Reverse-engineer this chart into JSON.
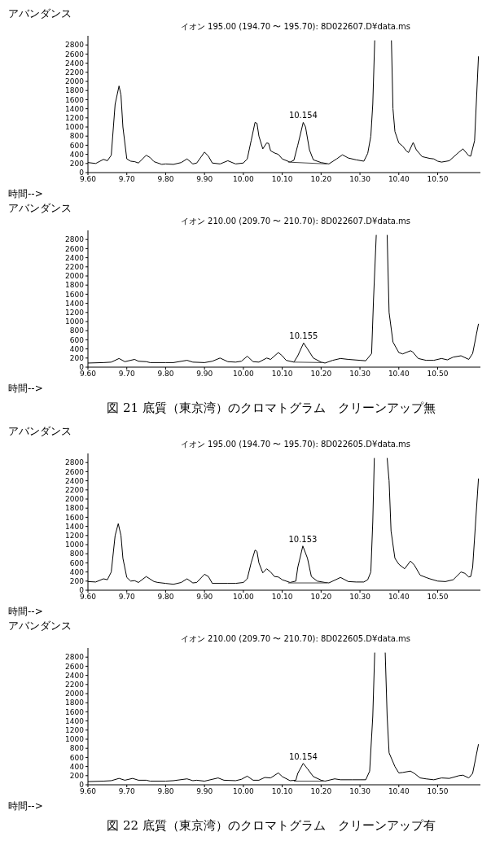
{
  "chart_data": [
    {
      "type": "line",
      "title": "イオン 195.00 (194.70 〜 195.70): 8D022607.D¥data.ms",
      "xlabel": "時間-->",
      "ylabel": "アバンダンス",
      "xlim": [
        9.6,
        10.61
      ],
      "ylim": [
        0,
        3000
      ],
      "xticks": [
        {
          "value": 9.6,
          "label": "9.60"
        },
        {
          "value": 9.7,
          "label": "9.70"
        },
        {
          "value": 9.8,
          "label": "9.80"
        },
        {
          "value": 9.9,
          "label": "9.90"
        },
        {
          "value": 10.0,
          "label": "10.00"
        },
        {
          "value": 10.1,
          "label": "10.10"
        },
        {
          "value": 10.2,
          "label": "10.20"
        },
        {
          "value": 10.3,
          "label": "10.30"
        },
        {
          "value": 10.4,
          "label": "10.40"
        },
        {
          "value": 10.5,
          "label": "10.50"
        }
      ],
      "yticks": [
        0,
        200,
        400,
        600,
        800,
        1000,
        1200,
        1400,
        1600,
        1800,
        2000,
        2200,
        2400,
        2600,
        2800
      ],
      "series": [
        {
          "color": "#000000",
          "x": [
            9.6,
            9.62,
            9.64,
            9.65,
            9.66,
            9.67,
            9.68,
            9.685,
            9.69,
            9.7,
            9.71,
            9.72,
            9.73,
            9.75,
            9.76,
            9.77,
            9.79,
            9.8,
            9.82,
            9.84,
            9.855,
            9.87,
            9.88,
            9.9,
            9.91,
            9.92,
            9.94,
            9.96,
            9.98,
            10.0,
            10.01,
            10.02,
            10.03,
            10.035,
            10.04,
            10.05,
            10.06,
            10.065,
            10.07,
            10.08,
            10.09,
            10.1,
            10.12,
            10.13,
            10.14,
            10.154,
            10.16,
            10.17,
            10.18,
            10.2,
            10.22,
            10.24,
            10.255,
            10.27,
            10.29,
            10.31,
            10.32,
            10.328,
            10.333,
            10.338,
            10.36,
            10.381,
            10.385,
            10.39,
            10.4,
            10.41,
            10.42,
            10.425,
            10.437,
            10.445,
            10.46,
            10.48,
            10.49,
            10.5,
            10.51,
            10.53,
            10.555,
            10.565,
            10.58,
            10.585,
            10.595,
            10.605
          ],
          "values": [
            220,
            200,
            290,
            260,
            380,
            1500,
            1900,
            1700,
            1000,
            300,
            250,
            240,
            210,
            380,
            330,
            240,
            180,
            190,
            180,
            220,
            300,
            190,
            210,
            450,
            360,
            210,
            190,
            260,
            190,
            210,
            300,
            700,
            1100,
            1080,
            800,
            520,
            650,
            640,
            480,
            430,
            400,
            300,
            230,
            270,
            600,
            1100,
            1000,
            500,
            280,
            220,
            190,
            300,
            390,
            320,
            280,
            250,
            420,
            800,
            1500,
            2900,
            null,
            2900,
            1400,
            900,
            650,
            580,
            470,
            440,
            660,
            500,
            350,
            310,
            300,
            250,
            230,
            260,
            450,
            520,
            370,
            360,
            700,
            2550
          ]
        },
        {
          "type": "line",
          "color": "#444444",
          "x": [
            10.115,
            10.215
          ],
          "values": [
            230,
            190
          ]
        }
      ],
      "annotations": [
        {
          "text": "10.154",
          "x": 10.154,
          "y": 1100
        }
      ]
    },
    {
      "type": "line",
      "title": "イオン 210.00 (209.70 〜 210.70): 8D022607.D¥data.ms",
      "xlabel": "時間-->",
      "ylabel": "アバンダンス",
      "xlim": [
        9.6,
        10.61
      ],
      "ylim": [
        0,
        3000
      ],
      "xticks": [
        {
          "value": 9.6,
          "label": "9.60"
        },
        {
          "value": 9.7,
          "label": "9.70"
        },
        {
          "value": 9.8,
          "label": "9.80"
        },
        {
          "value": 9.9,
          "label": "9.90"
        },
        {
          "value": 10.0,
          "label": "10.00"
        },
        {
          "value": 10.1,
          "label": "10.10"
        },
        {
          "value": 10.2,
          "label": "10.20"
        },
        {
          "value": 10.3,
          "label": "10.30"
        },
        {
          "value": 10.4,
          "label": "10.40"
        },
        {
          "value": 10.5,
          "label": "10.50"
        }
      ],
      "yticks": [
        0,
        200,
        400,
        600,
        800,
        1000,
        1200,
        1400,
        1600,
        1800,
        2000,
        2200,
        2400,
        2600,
        2800
      ],
      "series": [
        {
          "color": "#000000",
          "x": [
            9.6,
            9.64,
            9.66,
            9.68,
            9.695,
            9.72,
            9.73,
            9.75,
            9.76,
            9.8,
            9.82,
            9.855,
            9.87,
            9.9,
            9.92,
            9.94,
            9.96,
            9.98,
            9.995,
            10.01,
            10.025,
            10.04,
            10.06,
            10.07,
            10.09,
            10.1,
            10.11,
            10.13,
            10.14,
            10.155,
            10.165,
            10.18,
            10.2,
            10.21,
            10.23,
            10.25,
            10.27,
            10.3,
            10.315,
            10.33,
            10.335,
            10.342,
            10.355,
            10.37,
            10.375,
            10.385,
            10.4,
            10.41,
            10.43,
            10.435,
            10.45,
            10.47,
            10.49,
            10.51,
            10.525,
            10.54,
            10.56,
            10.58,
            10.59,
            10.605
          ],
          "values": [
            90,
            100,
            110,
            190,
            120,
            170,
            130,
            120,
            100,
            100,
            100,
            150,
            110,
            100,
            130,
            200,
            120,
            110,
            130,
            240,
            120,
            110,
            200,
            170,
            320,
            250,
            150,
            110,
            250,
            530,
            400,
            200,
            110,
            90,
            150,
            190,
            170,
            150,
            140,
            300,
            1500,
            2900,
            null,
            2900,
            1200,
            550,
            320,
            290,
            360,
            340,
            190,
            150,
            150,
            190,
            160,
            220,
            250,
            170,
            300,
            950
          ]
        },
        {
          "type": "line",
          "color": "#444444",
          "x": [
            10.13,
            10.205
          ],
          "values": [
            110,
            100
          ]
        }
      ],
      "annotations": [
        {
          "text": "10.155",
          "x": 10.155,
          "y": 530
        },
        "図 21 底質（東京湾）のクロマトグラム　クリーンアップ無"
      ]
    },
    {
      "type": "line",
      "title": "イオン 195.00 (194.70 〜 195.70): 8D022605.D¥data.ms",
      "xlabel": "時間-->",
      "ylabel": "アバンダンス",
      "xlim": [
        9.6,
        10.61
      ],
      "ylim": [
        0,
        3000
      ],
      "xticks": [
        {
          "value": 9.6,
          "label": "9.60"
        },
        {
          "value": 9.7,
          "label": "9.70"
        },
        {
          "value": 9.8,
          "label": "9.80"
        },
        {
          "value": 9.9,
          "label": "9.90"
        },
        {
          "value": 10.0,
          "label": "10.00"
        },
        {
          "value": 10.1,
          "label": "10.10"
        },
        {
          "value": 10.2,
          "label": "10.20"
        },
        {
          "value": 10.3,
          "label": "10.30"
        },
        {
          "value": 10.4,
          "label": "10.40"
        },
        {
          "value": 10.5,
          "label": "10.50"
        }
      ],
      "yticks": [
        0,
        200,
        400,
        600,
        800,
        1000,
        1200,
        1400,
        1600,
        1800,
        2000,
        2200,
        2400,
        2600,
        2800
      ],
      "series": [
        {
          "color": "#000000",
          "x": [
            9.6,
            9.62,
            9.64,
            9.65,
            9.66,
            9.67,
            9.678,
            9.685,
            9.69,
            9.7,
            9.71,
            9.72,
            9.73,
            9.75,
            9.77,
            9.78,
            9.8,
            9.82,
            9.84,
            9.855,
            9.87,
            9.88,
            9.9,
            9.91,
            9.92,
            9.96,
            9.98,
            10.0,
            10.01,
            10.02,
            10.03,
            10.035,
            10.04,
            10.05,
            10.06,
            10.07,
            10.08,
            10.09,
            10.1,
            10.12,
            10.135,
            10.14,
            10.153,
            10.165,
            10.175,
            10.19,
            10.21,
            10.22,
            10.25,
            10.27,
            10.29,
            10.31,
            10.32,
            10.328,
            10.333,
            10.337,
            10.355,
            10.37,
            10.375,
            10.38,
            10.39,
            10.4,
            10.415,
            10.43,
            10.44,
            10.455,
            10.47,
            10.48,
            10.5,
            10.52,
            10.54,
            10.56,
            10.57,
            10.58,
            10.585,
            10.59,
            10.605
          ],
          "values": [
            190,
            180,
            250,
            230,
            400,
            1200,
            1460,
            1200,
            700,
            280,
            200,
            210,
            170,
            300,
            190,
            170,
            150,
            130,
            170,
            250,
            160,
            170,
            350,
            300,
            150,
            150,
            150,
            170,
            250,
            600,
            880,
            850,
            600,
            380,
            470,
            400,
            300,
            290,
            230,
            170,
            200,
            500,
            970,
            700,
            300,
            200,
            170,
            160,
            280,
            190,
            180,
            180,
            230,
            400,
            1500,
            2900,
            null,
            2900,
            2400,
            1300,
            700,
            570,
            470,
            640,
            550,
            330,
            280,
            250,
            200,
            190,
            230,
            400,
            370,
            290,
            300,
            500,
            2450
          ]
        },
        {
          "type": "line",
          "color": "#444444",
          "x": [
            10.115,
            10.215
          ],
          "values": [
            160,
            160
          ]
        }
      ],
      "annotations": [
        {
          "text": "10.153",
          "x": 10.153,
          "y": 970
        }
      ]
    },
    {
      "type": "line",
      "title": "イオン 210.00 (209.70 〜 210.70): 8D022605.D¥data.ms",
      "xlabel": "時間-->",
      "ylabel": "アバンダンス",
      "xlim": [
        9.6,
        10.61
      ],
      "ylim": [
        0,
        3000
      ],
      "xticks": [
        {
          "value": 9.6,
          "label": "9.60"
        },
        {
          "value": 9.7,
          "label": "9.70"
        },
        {
          "value": 9.8,
          "label": "9.80"
        },
        {
          "value": 9.9,
          "label": "9.90"
        },
        {
          "value": 10.0,
          "label": "10.00"
        },
        {
          "value": 10.1,
          "label": "10.10"
        },
        {
          "value": 10.2,
          "label": "10.20"
        },
        {
          "value": 10.3,
          "label": "10.30"
        },
        {
          "value": 10.4,
          "label": "10.40"
        },
        {
          "value": 10.5,
          "label": "10.50"
        }
      ],
      "yticks": [
        0,
        200,
        400,
        600,
        800,
        1000,
        1200,
        1400,
        1600,
        1800,
        2000,
        2200,
        2400,
        2600,
        2800
      ],
      "series": [
        {
          "color": "#000000",
          "x": [
            9.6,
            9.64,
            9.66,
            9.68,
            9.695,
            9.715,
            9.73,
            9.75,
            9.76,
            9.8,
            9.82,
            9.855,
            9.87,
            9.88,
            9.9,
            9.935,
            9.95,
            9.98,
            9.995,
            10.01,
            10.025,
            10.04,
            10.055,
            10.07,
            10.09,
            10.1,
            10.12,
            10.135,
            10.14,
            10.154,
            10.165,
            10.18,
            10.2,
            10.21,
            10.235,
            10.25,
            10.28,
            10.3,
            10.315,
            10.325,
            10.333,
            10.338,
            10.35,
            10.365,
            10.37,
            10.375,
            10.39,
            10.4,
            10.41,
            10.43,
            10.44,
            10.455,
            10.47,
            10.49,
            10.51,
            10.53,
            10.555,
            10.565,
            10.58,
            10.59,
            10.605
          ],
          "values": [
            70,
            80,
            90,
            140,
            100,
            140,
            100,
            100,
            80,
            80,
            90,
            130,
            90,
            100,
            80,
            150,
            100,
            90,
            120,
            190,
            100,
            100,
            160,
            150,
            260,
            180,
            90,
            100,
            250,
            470,
            350,
            180,
            100,
            80,
            130,
            110,
            110,
            110,
            110,
            300,
            1500,
            2900,
            null,
            2900,
            1500,
            700,
            400,
            260,
            270,
            300,
            250,
            150,
            130,
            110,
            150,
            140,
            200,
            210,
            150,
            250,
            890
          ]
        },
        {
          "type": "line",
          "color": "#444444",
          "x": [
            10.13,
            10.21
          ],
          "values": [
            80,
            80
          ]
        }
      ],
      "annotations": [
        {
          "text": "10.154",
          "x": 10.154,
          "y": 470
        },
        "図 22 底質（東京湾）のクロマトグラム　クリーンアップ有"
      ]
    }
  ]
}
